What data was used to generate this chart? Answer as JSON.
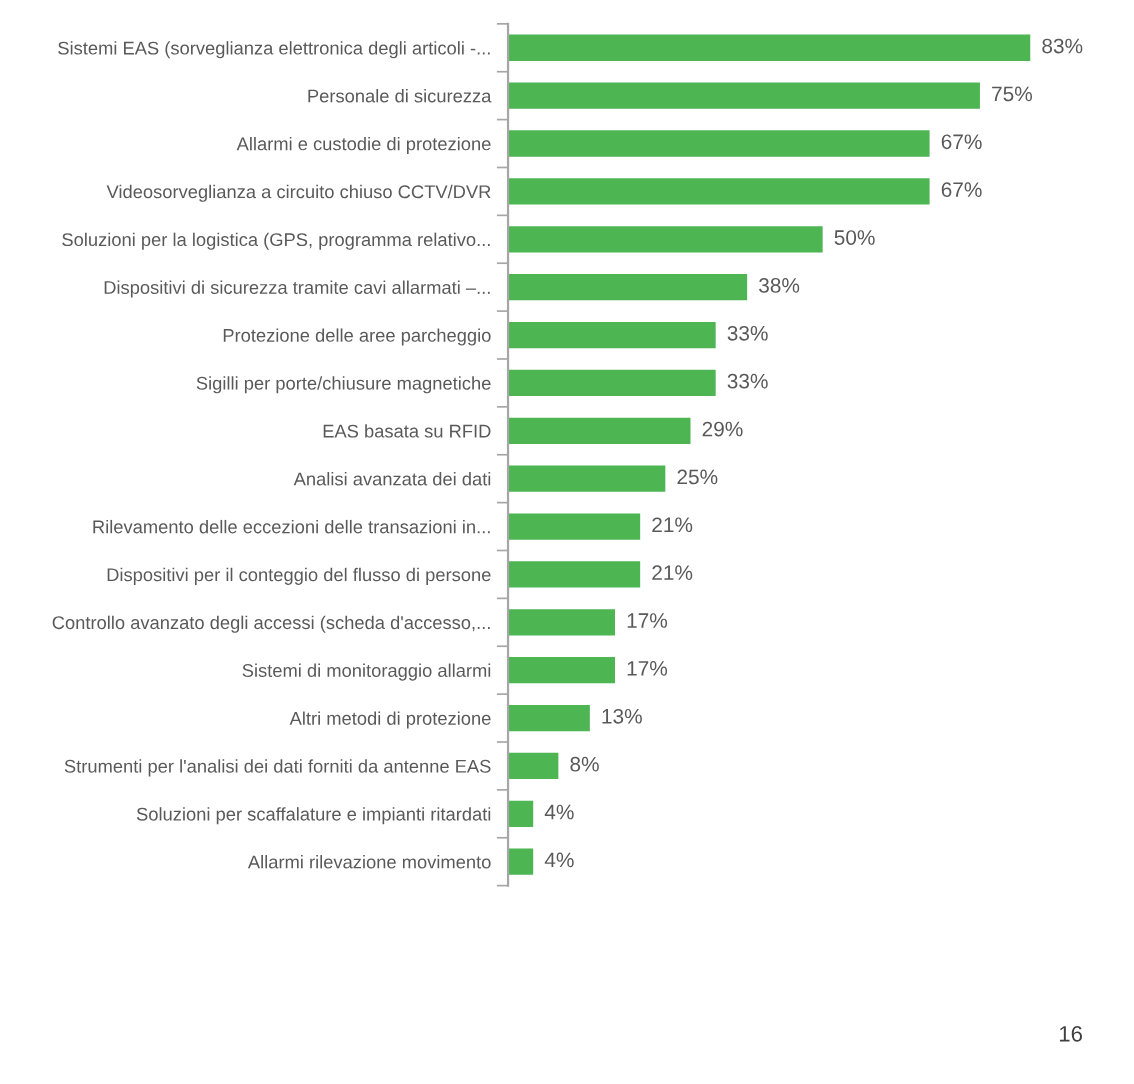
{
  "chart_data": {
    "type": "bar",
    "orientation": "horizontal",
    "categories": [
      "Sistemi EAS (sorveglianza elettronica degli articoli -...",
      "Personale di sicurezza",
      "Allarmi e custodie di protezione",
      "Videosorveglianza a circuito chiuso CCTV/DVR",
      "Soluzioni per la logistica (GPS, programma relativo...",
      "Dispositivi di sicurezza tramite cavi allarmati –...",
      "Protezione delle aree parcheggio",
      "Sigilli per porte/chiusure magnetiche",
      "EAS basata su RFID",
      "Analisi avanzata dei dati",
      "Rilevamento delle eccezioni delle transazioni in...",
      "Dispositivi per il conteggio del flusso di persone",
      "Controllo avanzato degli accessi (scheda d'accesso,...",
      "Sistemi di monitoraggio allarmi",
      "Altri metodi di protezione",
      "Strumenti per l'analisi dei dati forniti da antenne EAS",
      "Soluzioni per scaffalature e impianti ritardati",
      "Allarmi rilevazione movimento"
    ],
    "values": [
      83,
      75,
      67,
      67,
      50,
      38,
      33,
      33,
      29,
      25,
      21,
      21,
      17,
      17,
      13,
      8,
      4,
      4
    ],
    "value_labels": [
      "83%",
      "75%",
      "67%",
      "67%",
      "50%",
      "38%",
      "33%",
      "33%",
      "29%",
      "25%",
      "21%",
      "21%",
      "17%",
      "17%",
      "13%",
      "8%",
      "4%",
      "4%"
    ],
    "color": "#4db552",
    "annotations": [
      "16"
    ]
  }
}
